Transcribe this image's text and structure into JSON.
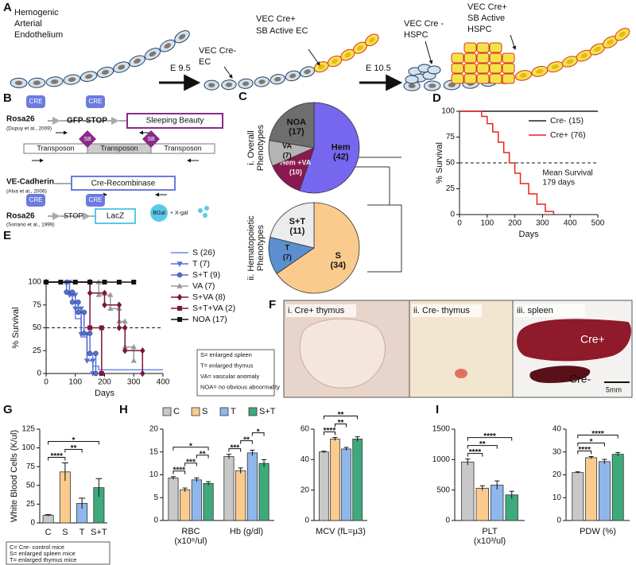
{
  "panel_a": {
    "letter": "A",
    "origin": [
      "Hemogenic",
      "Arterial",
      "Endothelium"
    ],
    "stage1": "E 9.5",
    "stage2": "E 10.5",
    "ec_negative": [
      "VEC Cre-",
      "EC"
    ],
    "ec_positive": [
      "VEC Cre+",
      "SB Active EC"
    ],
    "hspc_negative": [
      "VEC Cre -",
      "HSPC"
    ],
    "hspc_positive": [
      "VEC Cre+",
      "SB Active",
      "HSPC"
    ]
  },
  "panel_b": {
    "letter": "B",
    "cre": "CRE",
    "rosa26": "Rosa26",
    "gfp_stop": "GFP-STOP",
    "sleeping_beauty": "Sleeping Beauty",
    "ref_dupuy": "(Dupuy et al., 2009)",
    "sb": "SB",
    "transposon": "Transposon",
    "ve_cadherin": "VE-Cadherin",
    "cre_recombinase": "Cre-Recombinase",
    "ref_alva": "(Alva et al., 2006)",
    "stop": "STOP",
    "lacz": "LacZ",
    "ref_soriano": "(Soriano et al., 1999)",
    "bgal": "BGal",
    "xgal": "+ X-gal"
  },
  "panel_c": {
    "letter": "C"
  },
  "panel_f": {
    "letter": "F",
    "images": [
      "i. Cre+ thymus",
      "ii. Cre- thymus",
      "iii. spleen"
    ],
    "cre_pos": "Cre+",
    "cre_neg": "Cre-",
    "scale": "5mm"
  },
  "chart_data": [
    {
      "type": "pie",
      "title": [
        "i. Overall",
        "Phenotypes"
      ],
      "categories": [
        "Hem",
        "Hem +VA",
        "VA",
        "NOA"
      ],
      "values": [
        42,
        10,
        7,
        17
      ],
      "value_labels": [
        "(42)",
        "(10)",
        "(7)",
        "(17)"
      ],
      "colors": [
        "#7766ee",
        "#8c1850",
        "#b4b4b4",
        "#6e6e6e"
      ]
    },
    {
      "type": "pie",
      "title": [
        "ii. Hematopoietic",
        "Phenotypes"
      ],
      "categories": [
        "S",
        "T",
        "S+T"
      ],
      "values": [
        34,
        7,
        11
      ],
      "value_labels": [
        "(34)",
        "(7)",
        "(11)"
      ],
      "colors": [
        "#fbcb8e",
        "#5b8fd0",
        "#ececec"
      ]
    },
    {
      "type": "line",
      "letter": "D",
      "x_label": "Days",
      "y_label": "% Survival",
      "xlim": [
        0,
        500
      ],
      "xticks": [
        0,
        100,
        200,
        300,
        400,
        500
      ],
      "ylim": [
        0,
        100
      ],
      "yticks": [
        0,
        25,
        50,
        75,
        100
      ],
      "legend": "top-right",
      "reference_line": 50,
      "annotation": [
        "Mean Survival",
        "179 days"
      ],
      "series": [
        {
          "name": "Cre- (15)",
          "color": "#222222",
          "x": [
            0,
            500
          ],
          "values": [
            100,
            100
          ]
        },
        {
          "name": "Cre+ (76)",
          "color": "#e8251f",
          "x": [
            0,
            80,
            80,
            100,
            100,
            120,
            120,
            140,
            140,
            160,
            160,
            180,
            180,
            200,
            200,
            220,
            220,
            250,
            250,
            280,
            280,
            310,
            310,
            340,
            340
          ],
          "values": [
            100,
            100,
            95,
            95,
            88,
            88,
            80,
            80,
            70,
            70,
            60,
            60,
            50,
            50,
            40,
            40,
            30,
            30,
            20,
            20,
            10,
            10,
            3,
            3,
            0
          ]
        }
      ]
    },
    {
      "type": "line",
      "letter": "E",
      "x_label": "Days",
      "y_label": "% Survival",
      "xlim": [
        0,
        400
      ],
      "xticks": [
        0,
        100,
        200,
        300,
        400
      ],
      "ylim": [
        0,
        100
      ],
      "yticks": [
        0,
        25,
        50,
        75,
        100
      ],
      "legend": "right",
      "reference_line": 50,
      "notes": [
        "S= enlarged spleen",
        "T= enlarged thymus",
        "VA= vascular anomaly",
        "NOA= no obvious abnormality"
      ],
      "series": [
        {
          "name": "S (26)",
          "color": "#6f86e8",
          "x": [
            0,
            80,
            80,
            100,
            100,
            120,
            120,
            140,
            140,
            160,
            160,
            180,
            180,
            400
          ],
          "values": [
            100,
            100,
            85,
            85,
            60,
            60,
            40,
            40,
            20,
            20,
            8,
            8,
            4,
            4
          ]
        },
        {
          "name": "T (7)",
          "color": "#5470d6",
          "marker": "triangle-down",
          "x": [
            0,
            80,
            80,
            100,
            100,
            120,
            120,
            140,
            140,
            160,
            160
          ],
          "values": [
            100,
            100,
            86,
            86,
            71,
            71,
            43,
            43,
            14,
            14,
            0
          ]
        },
        {
          "name": "S+T (9)",
          "color": "#5470d6",
          "marker": "circle",
          "x": [
            0,
            70,
            70,
            90,
            90,
            110,
            110,
            130,
            130,
            150,
            150,
            170,
            170
          ],
          "values": [
            100,
            100,
            89,
            89,
            78,
            78,
            67,
            67,
            44,
            44,
            22,
            22,
            0
          ]
        },
        {
          "name": "VA (7)",
          "color": "#9a9a9a",
          "marker": "triangle-up",
          "x": [
            0,
            180,
            180,
            220,
            220,
            250,
            250,
            270,
            270,
            300,
            300
          ],
          "values": [
            100,
            100,
            86,
            86,
            71,
            71,
            57,
            57,
            29,
            29,
            14
          ]
        },
        {
          "name": "S+VA (8)",
          "color": "#7a1640",
          "marker": "diamond",
          "x": [
            0,
            150,
            150,
            200,
            200,
            250,
            250,
            270,
            270,
            330,
            330
          ],
          "values": [
            100,
            100,
            88,
            88,
            75,
            75,
            50,
            50,
            25,
            25,
            0
          ]
        },
        {
          "name": "S+T+VA (2)",
          "color": "#7a1640",
          "marker": "square",
          "x": [
            0,
            150,
            150,
            190,
            190
          ],
          "values": [
            100,
            100,
            50,
            50,
            0
          ]
        },
        {
          "name": "NOA (17)",
          "color": "#111111",
          "marker": "square",
          "x": [
            0,
            50,
            100,
            150,
            200,
            250,
            300
          ],
          "values": [
            100,
            100,
            100,
            100,
            100,
            100,
            100
          ]
        }
      ]
    },
    {
      "type": "bar",
      "letter": "G",
      "y_label": "White Blood Cells (K/ul)",
      "categories": [
        "C",
        "S",
        "T",
        "S+T"
      ],
      "values": [
        10,
        68,
        26,
        47
      ],
      "errors": [
        1,
        12,
        7,
        12
      ],
      "colors": [
        "#c8c8c8",
        "#fbcb8e",
        "#8fb7ec",
        "#3eaa7c"
      ],
      "ylim": [
        0,
        125
      ],
      "yticks": [
        0,
        25,
        50,
        75,
        100,
        125
      ],
      "significance": [
        {
          "label": "****",
          "between": [
            "C",
            "S"
          ]
        },
        {
          "label": "**",
          "between": [
            "S",
            "T"
          ]
        },
        {
          "label": "*",
          "between": [
            "C",
            "S+T"
          ]
        }
      ],
      "notes": [
        "C= Cre- control mice",
        "S= enlarged spleen mice",
        "T= enlarged thymus mice"
      ]
    },
    {
      "type": "grouped_bar",
      "letter": "H",
      "legend": "top",
      "categories": [
        [
          "RBC",
          "(x10⁶/ul)"
        ],
        [
          "Hb (g/dl)"
        ]
      ],
      "ylim": [
        0,
        20
      ],
      "yticks": [
        0,
        5,
        10,
        15,
        20
      ],
      "series": [
        {
          "name": "C",
          "color": "#c8c8c8",
          "values": [
            9.3,
            14
          ],
          "errors": [
            0.3,
            0.5
          ]
        },
        {
          "name": "S",
          "color": "#fbcb8e",
          "values": [
            6.7,
            10.9
          ],
          "errors": [
            0.4,
            0.6
          ]
        },
        {
          "name": "T",
          "color": "#8fb7ec",
          "values": [
            8.9,
            14.8
          ],
          "errors": [
            0.4,
            0.6
          ]
        },
        {
          "name": "S+T",
          "color": "#3eaa7c",
          "values": [
            8.1,
            12.5
          ],
          "errors": [
            0.4,
            0.8
          ]
        }
      ],
      "significance": [
        [
          {
            "label": "****",
            "between": [
              "C",
              "S"
            ]
          },
          {
            "label": "***",
            "between": [
              "S",
              "T"
            ]
          },
          {
            "label": "**",
            "between": [
              "T",
              "S+T"
            ]
          },
          {
            "label": "*",
            "between": [
              "C",
              "S+T"
            ]
          }
        ],
        [
          {
            "label": "***",
            "between": [
              "C",
              "S"
            ]
          },
          {
            "label": "**",
            "between": [
              "S",
              "T"
            ]
          },
          {
            "label": "*",
            "between": [
              "T",
              "S+T"
            ]
          }
        ]
      ]
    },
    {
      "type": "grouped_bar",
      "categories": [
        [
          "MCV (fL=µ3)"
        ]
      ],
      "ylim": [
        0,
        60
      ],
      "yticks": [
        0,
        20,
        40,
        60
      ],
      "series": [
        {
          "name": "C",
          "color": "#c8c8c8",
          "values": [
            45
          ],
          "errors": [
            0.5
          ]
        },
        {
          "name": "S",
          "color": "#fbcb8e",
          "values": [
            53.5
          ],
          "errors": [
            1
          ]
        },
        {
          "name": "T",
          "color": "#8fb7ec",
          "values": [
            47
          ],
          "errors": [
            1
          ]
        },
        {
          "name": "S+T",
          "color": "#3eaa7c",
          "values": [
            53.5
          ],
          "errors": [
            1.5
          ]
        }
      ],
      "significance": [
        [
          {
            "label": "****",
            "between": [
              "C",
              "S"
            ]
          },
          {
            "label": "**",
            "between": [
              "S",
              "T"
            ]
          },
          {
            "label": "**",
            "between": [
              "C",
              "S+T"
            ]
          }
        ]
      ]
    },
    {
      "type": "grouped_bar",
      "letter": "I",
      "categories": [
        [
          "PLT",
          "(x10³/ul)"
        ]
      ],
      "ylim": [
        0,
        1500
      ],
      "yticks": [
        0,
        500,
        1000,
        1500
      ],
      "series": [
        {
          "name": "C",
          "color": "#c8c8c8",
          "values": [
            960
          ],
          "errors": [
            50
          ]
        },
        {
          "name": "S",
          "color": "#fbcb8e",
          "values": [
            530
          ],
          "errors": [
            40
          ]
        },
        {
          "name": "T",
          "color": "#8fb7ec",
          "values": [
            580
          ],
          "errors": [
            70
          ]
        },
        {
          "name": "S+T",
          "color": "#3eaa7c",
          "values": [
            420
          ],
          "errors": [
            60
          ]
        }
      ],
      "significance": [
        [
          {
            "label": "****",
            "between": [
              "C",
              "S"
            ]
          },
          {
            "label": "**",
            "between": [
              "C",
              "T"
            ]
          },
          {
            "label": "****",
            "between": [
              "C",
              "S+T"
            ]
          }
        ]
      ]
    },
    {
      "type": "grouped_bar",
      "categories": [
        [
          "PDW (%)"
        ]
      ],
      "ylim": [
        0,
        40
      ],
      "yticks": [
        0,
        10,
        20,
        30,
        40
      ],
      "series": [
        {
          "name": "C",
          "color": "#c8c8c8",
          "values": [
            21
          ],
          "errors": [
            0.3
          ]
        },
        {
          "name": "S",
          "color": "#fbcb8e",
          "values": [
            27.5
          ],
          "errors": [
            0.5
          ]
        },
        {
          "name": "T",
          "color": "#8fb7ec",
          "values": [
            25.8
          ],
          "errors": [
            1
          ]
        },
        {
          "name": "S+T",
          "color": "#3eaa7c",
          "values": [
            29
          ],
          "errors": [
            0.8
          ]
        }
      ],
      "significance": [
        [
          {
            "label": "****",
            "between": [
              "C",
              "S"
            ]
          },
          {
            "label": "*",
            "between": [
              "C",
              "T"
            ]
          },
          {
            "label": "****",
            "between": [
              "C",
              "S+T"
            ]
          }
        ]
      ]
    }
  ]
}
